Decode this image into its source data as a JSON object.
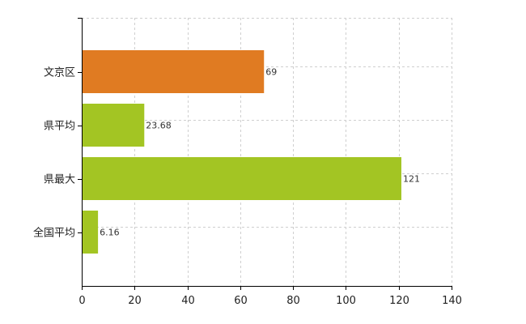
{
  "chart_data": {
    "type": "bar",
    "orientation": "horizontal",
    "categories": [
      "文京区",
      "県平均",
      "県最大",
      "全国平均"
    ],
    "values": [
      69,
      23.68,
      121,
      6.16
    ],
    "value_labels": [
      "69",
      "23.68",
      "121",
      "6.16"
    ],
    "bar_colors": [
      "#e07b22",
      "#a3c523",
      "#a3c523",
      "#a3c523"
    ],
    "xlim": [
      0,
      140
    ],
    "x_ticks": [
      0,
      20,
      40,
      60,
      80,
      100,
      120,
      140
    ],
    "x_tick_labels": [
      "0",
      "20",
      "40",
      "60",
      "80",
      "100",
      "120",
      "140"
    ],
    "grid": true,
    "title": "",
    "xlabel": "",
    "ylabel": ""
  }
}
